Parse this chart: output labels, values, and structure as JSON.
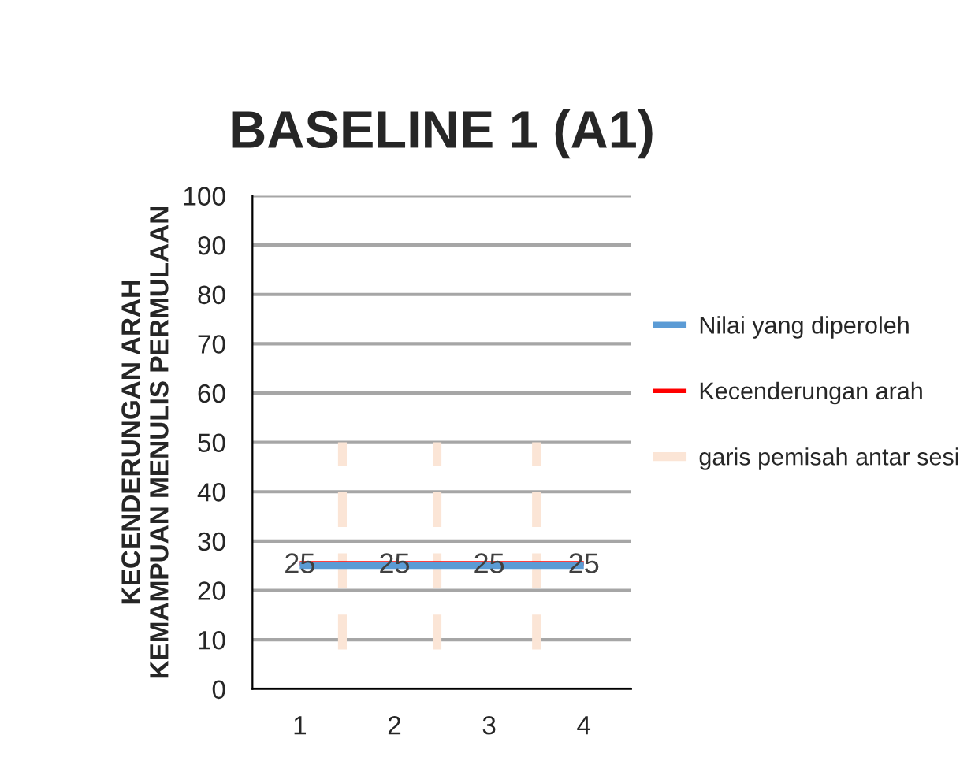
{
  "chart_data": {
    "type": "line",
    "title": "BASELINE 1 (A1)",
    "ylabel": "KECENDERUNGAN ARAH\nKEMAMPUAN MENULIS PERMULAAN",
    "x": [
      1,
      2,
      3,
      4
    ],
    "xlim": [
      0.5,
      4.5
    ],
    "xticks": [
      1,
      2,
      3,
      4
    ],
    "ylim": [
      0,
      100
    ],
    "yticks": [
      0,
      10,
      20,
      30,
      40,
      50,
      60,
      70,
      80,
      90,
      100
    ],
    "grid": "y",
    "legend": "right",
    "marker": "none",
    "series": [
      {
        "name": "Nilai yang diperoleh",
        "color": "#5b9bd5",
        "values": [
          25,
          25,
          25,
          25
        ],
        "value_labels": [
          "25",
          "25",
          "25",
          "25"
        ],
        "line_style": "solid"
      },
      {
        "name": "Kecenderungan arah",
        "color": "#ff0000",
        "values": [
          25.5,
          25.5,
          25.5,
          25.5
        ],
        "line_style": "solid"
      },
      {
        "name": "garis pemisah antar sesi",
        "color": "#fbe5d6",
        "x": [
          1.45,
          1.45,
          null,
          2.45,
          2.45,
          null,
          3.5,
          3.5
        ],
        "values": [
          8,
          50,
          null,
          8,
          50,
          null,
          8,
          50
        ],
        "line_style": "dashed"
      }
    ]
  }
}
